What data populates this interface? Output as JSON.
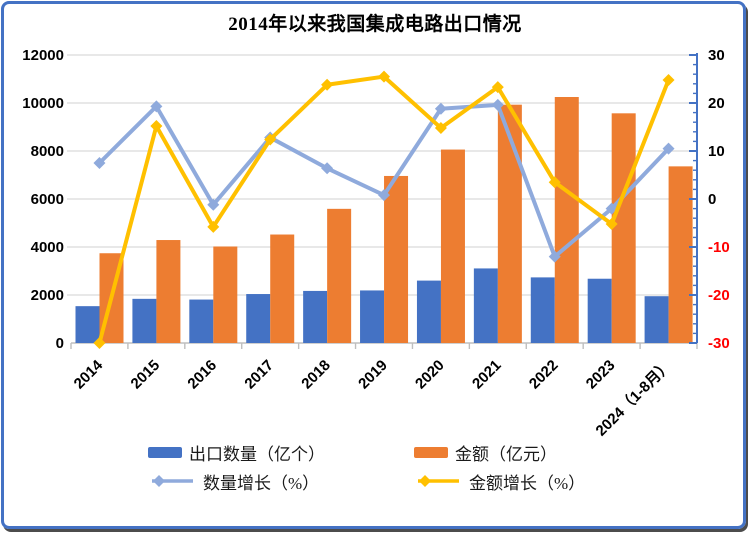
{
  "window": {
    "background": "#FFFFFF",
    "frame_color": "#4472C4"
  },
  "chart_data": {
    "type": "combo-bar-line",
    "title": "2014年以来我国集成电路出口情况",
    "categories": [
      "2014",
      "2015",
      "2016",
      "2017",
      "2018",
      "2019",
      "2020",
      "2021",
      "2022",
      "2023",
      "2024（1-8月）"
    ],
    "bar_series": [
      {
        "name": "出口数量（亿个）",
        "color": "#4472C4",
        "axis": "left",
        "values": [
          1535,
          1840,
          1810,
          2040,
          2170,
          2190,
          2600,
          3107,
          2734,
          2678,
          1950
        ]
      },
      {
        "name": "金额（亿元）",
        "color": "#ED7D31",
        "axis": "left",
        "values": [
          3740,
          4290,
          4020,
          4520,
          5590,
          6960,
          8060,
          9930,
          10250,
          9570,
          7360
        ]
      }
    ],
    "line_series": [
      {
        "name": "数量增长（%）",
        "color": "#8FAADC",
        "axis": "right",
        "values": [
          7.5,
          19.3,
          -1.2,
          12.8,
          6.4,
          0.8,
          18.8,
          19.6,
          -12.0,
          -2.0,
          10.5
        ]
      },
      {
        "name": "金额增长（%）",
        "color": "#FFC000",
        "axis": "right",
        "values": [
          -30.0,
          15.2,
          -5.8,
          12.4,
          23.8,
          25.5,
          14.8,
          23.3,
          3.5,
          -5.2,
          24.8
        ]
      }
    ],
    "left_axis": {
      "min": 0,
      "max": 12000,
      "step": 2000
    },
    "right_axis": {
      "min": -30,
      "max": 30,
      "step": 10,
      "minor_step": 2,
      "negative_label_color": "#FF0000"
    },
    "grid": true,
    "legend_position": "bottom",
    "colors": {
      "gridline": "#D9D9D9",
      "x_axis_line": "#BFBFBF",
      "right_axis_line": "#4472C4",
      "tick_label": "#000000"
    }
  }
}
